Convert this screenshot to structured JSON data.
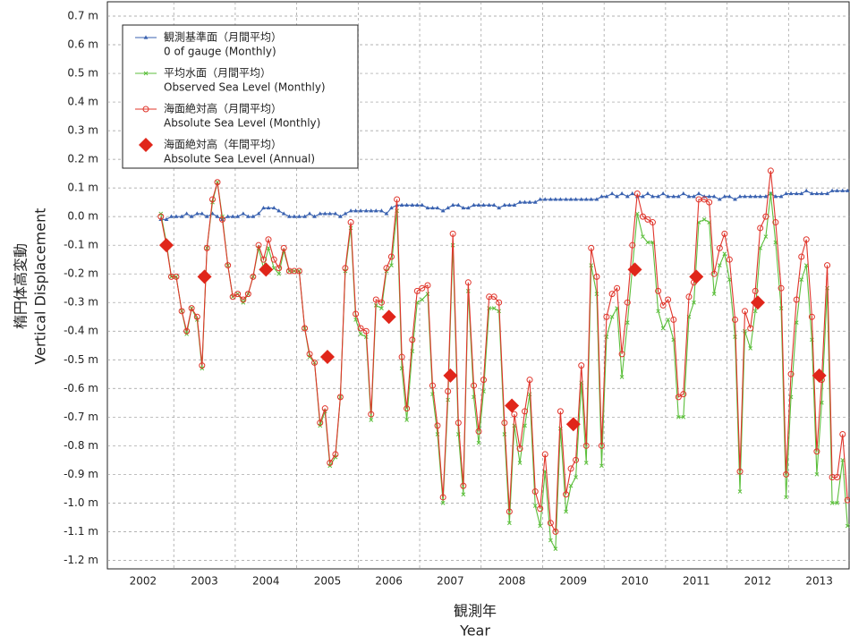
{
  "chart_data": {
    "type": "line",
    "y_label": [
      "楕円体高変動",
      "Vertical Displacement"
    ],
    "x_label": [
      "観測年",
      "Year"
    ],
    "xlim": [
      2001.92,
      2014.0
    ],
    "ylim": [
      -1.23,
      0.75
    ],
    "xticks": [
      {
        "value": 2002.5,
        "label": "2002"
      },
      {
        "value": 2003.5,
        "label": "2003"
      },
      {
        "value": 2004.5,
        "label": "2004"
      },
      {
        "value": 2005.5,
        "label": "2005"
      },
      {
        "value": 2006.5,
        "label": "2006"
      },
      {
        "value": 2007.5,
        "label": "2007"
      },
      {
        "value": 2008.5,
        "label": "2008"
      },
      {
        "value": 2009.5,
        "label": "2009"
      },
      {
        "value": 2010.5,
        "label": "2010"
      },
      {
        "value": 2011.5,
        "label": "2011"
      },
      {
        "value": 2012.5,
        "label": "2012"
      },
      {
        "value": 2013.5,
        "label": "2013"
      }
    ],
    "xgrid": [
      2003,
      2004,
      2005,
      2006,
      2007,
      2008,
      2009,
      2010,
      2011,
      2012,
      2013
    ],
    "yticks": [
      {
        "value": 0.7,
        "label": "0.7 m"
      },
      {
        "value": 0.6,
        "label": "0.6 m"
      },
      {
        "value": 0.5,
        "label": "0.5 m"
      },
      {
        "value": 0.4,
        "label": "0.4 m"
      },
      {
        "value": 0.3,
        "label": "0.3 m"
      },
      {
        "value": 0.2,
        "label": "0.2 m"
      },
      {
        "value": 0.1,
        "label": "0.1 m"
      },
      {
        "value": 0.0,
        "label": "0.0 m"
      },
      {
        "value": -0.1,
        "label": "-0.1 m"
      },
      {
        "value": -0.2,
        "label": "-0.2 m"
      },
      {
        "value": -0.3,
        "label": "-0.3 m"
      },
      {
        "value": -0.4,
        "label": "-0.4 m"
      },
      {
        "value": -0.5,
        "label": "-0.5 m"
      },
      {
        "value": -0.6,
        "label": "-0.6 m"
      },
      {
        "value": -0.7,
        "label": "-0.7 m"
      },
      {
        "value": -0.8,
        "label": "-0.8 m"
      },
      {
        "value": -0.9,
        "label": "-0.9 m"
      },
      {
        "value": -1.0,
        "label": "-1.0 m"
      },
      {
        "value": -1.1,
        "label": "-1.1 m"
      },
      {
        "value": -1.2,
        "label": "-1.2 m"
      }
    ],
    "grid": true,
    "legend": "upper left",
    "x": [
      2002.79,
      2002.88,
      2002.96,
      2003.04,
      2003.13,
      2003.21,
      2003.29,
      2003.38,
      2003.46,
      2003.54,
      2003.63,
      2003.71,
      2003.79,
      2003.88,
      2003.96,
      2004.04,
      2004.13,
      2004.21,
      2004.29,
      2004.38,
      2004.46,
      2004.54,
      2004.63,
      2004.71,
      2004.79,
      2004.88,
      2004.96,
      2005.04,
      2005.13,
      2005.21,
      2005.29,
      2005.38,
      2005.46,
      2005.54,
      2005.63,
      2005.71,
      2005.79,
      2005.88,
      2005.96,
      2006.04,
      2006.13,
      2006.21,
      2006.29,
      2006.38,
      2006.46,
      2006.54,
      2006.63,
      2006.71,
      2006.79,
      2006.88,
      2006.96,
      2007.04,
      2007.13,
      2007.21,
      2007.29,
      2007.38,
      2007.46,
      2007.54,
      2007.63,
      2007.71,
      2007.79,
      2007.88,
      2007.96,
      2008.04,
      2008.13,
      2008.21,
      2008.29,
      2008.38,
      2008.46,
      2008.54,
      2008.63,
      2008.71,
      2008.79,
      2008.88,
      2008.96,
      2009.04,
      2009.13,
      2009.21,
      2009.29,
      2009.38,
      2009.46,
      2009.54,
      2009.63,
      2009.71,
      2009.79,
      2009.88,
      2009.96,
      2010.04,
      2010.13,
      2010.21,
      2010.29,
      2010.38,
      2010.46,
      2010.54,
      2010.63,
      2010.71,
      2010.79,
      2010.88,
      2010.96,
      2011.04,
      2011.13,
      2011.21,
      2011.29,
      2011.38,
      2011.46,
      2011.54,
      2011.63,
      2011.71,
      2011.79,
      2011.88,
      2011.96,
      2012.04,
      2012.13,
      2012.21,
      2012.29,
      2012.38,
      2012.46,
      2012.54,
      2012.63,
      2012.71,
      2012.79,
      2012.88,
      2012.96,
      2013.04,
      2013.13,
      2013.21,
      2013.29,
      2013.38,
      2013.46,
      2013.54,
      2013.63,
      2013.71,
      2013.79,
      2013.88,
      2013.96
    ],
    "series": [
      {
        "name": [
          "観測基準面（月間平均）",
          "0 of gauge (Monthly)"
        ],
        "color": "#3a62b0",
        "marker": "triangle",
        "line": true,
        "values": [
          -0.01,
          -0.01,
          0.0,
          0.0,
          0.0,
          0.01,
          0.0,
          0.01,
          0.01,
          0.0,
          0.01,
          0.0,
          -0.01,
          0.0,
          0.0,
          0.0,
          0.01,
          0.0,
          0.0,
          0.01,
          0.03,
          0.03,
          0.03,
          0.02,
          0.01,
          0.0,
          0.0,
          0.0,
          0.0,
          0.01,
          0.0,
          0.01,
          0.01,
          0.01,
          0.01,
          0.0,
          0.01,
          0.02,
          0.02,
          0.02,
          0.02,
          0.02,
          0.02,
          0.02,
          0.01,
          0.03,
          0.04,
          0.04,
          0.04,
          0.04,
          0.04,
          0.04,
          0.03,
          0.03,
          0.03,
          0.02,
          0.03,
          0.04,
          0.04,
          0.03,
          0.03,
          0.04,
          0.04,
          0.04,
          0.04,
          0.04,
          0.03,
          0.04,
          0.04,
          0.04,
          0.05,
          0.05,
          0.05,
          0.05,
          0.06,
          0.06,
          0.06,
          0.06,
          0.06,
          0.06,
          0.06,
          0.06,
          0.06,
          0.06,
          0.06,
          0.06,
          0.07,
          0.07,
          0.08,
          0.07,
          0.08,
          0.07,
          0.08,
          0.07,
          0.07,
          0.08,
          0.07,
          0.07,
          0.08,
          0.07,
          0.07,
          0.07,
          0.08,
          0.07,
          0.07,
          0.08,
          0.07,
          0.07,
          0.07,
          0.06,
          0.07,
          0.07,
          0.06,
          0.07,
          0.07,
          0.07,
          0.07,
          0.07,
          0.07,
          0.08,
          0.07,
          0.07,
          0.08,
          0.08,
          0.08,
          0.08,
          0.09,
          0.08,
          0.08,
          0.08,
          0.08,
          0.09,
          0.09,
          0.09,
          0.09
        ]
      },
      {
        "name": [
          "平均水面（月間平均）",
          "Observed Sea Level (Monthly)"
        ],
        "color": "#5cbf3c",
        "marker": "cross",
        "line": true,
        "values": [
          0.01,
          -0.09,
          -0.21,
          -0.21,
          -0.33,
          -0.41,
          -0.32,
          -0.36,
          -0.53,
          -0.11,
          0.05,
          0.12,
          0.0,
          -0.17,
          -0.28,
          -0.27,
          -0.3,
          -0.27,
          -0.21,
          -0.11,
          -0.18,
          -0.11,
          -0.18,
          -0.2,
          -0.12,
          -0.19,
          -0.19,
          -0.19,
          -0.39,
          -0.49,
          -0.51,
          -0.73,
          -0.68,
          -0.87,
          -0.84,
          -0.63,
          -0.19,
          -0.04,
          -0.36,
          -0.41,
          -0.42,
          -0.71,
          -0.31,
          -0.32,
          -0.19,
          -0.17,
          0.02,
          -0.53,
          -0.71,
          -0.47,
          -0.3,
          -0.29,
          -0.27,
          -0.62,
          -0.76,
          -1.0,
          -0.64,
          -0.1,
          -0.76,
          -0.97,
          -0.26,
          -0.63,
          -0.79,
          -0.61,
          -0.32,
          -0.32,
          -0.33,
          -0.76,
          -1.07,
          -0.73,
          -0.86,
          -0.73,
          -0.62,
          -1.01,
          -1.08,
          -0.89,
          -1.13,
          -1.16,
          -0.74,
          -1.03,
          -0.94,
          -0.91,
          -0.58,
          -0.86,
          -0.17,
          -0.27,
          -0.87,
          -0.42,
          -0.35,
          -0.32,
          -0.56,
          -0.37,
          -0.18,
          0.01,
          -0.07,
          -0.09,
          -0.09,
          -0.33,
          -0.39,
          -0.36,
          -0.43,
          -0.7,
          -0.7,
          -0.35,
          -0.3,
          -0.02,
          -0.01,
          -0.02,
          -0.27,
          -0.17,
          -0.13,
          -0.22,
          -0.42,
          -0.96,
          -0.4,
          -0.46,
          -0.33,
          -0.11,
          -0.07,
          0.08,
          -0.09,
          -0.32,
          -0.98,
          -0.63,
          -0.37,
          -0.22,
          -0.17,
          -0.43,
          -0.9,
          -0.65,
          -0.25,
          -1.0,
          -1.0,
          -0.85,
          -1.08
        ]
      },
      {
        "name": [
          "海面絶対高（月間平均）",
          "Absolute Sea Level (Monthly)"
        ],
        "color": "#e0342a",
        "marker": "circle",
        "line": true,
        "values": [
          0.0,
          -0.1,
          -0.21,
          -0.21,
          -0.33,
          -0.4,
          -0.32,
          -0.35,
          -0.52,
          -0.11,
          0.06,
          0.12,
          -0.01,
          -0.17,
          -0.28,
          -0.27,
          -0.29,
          -0.27,
          -0.21,
          -0.1,
          -0.15,
          -0.08,
          -0.15,
          -0.18,
          -0.11,
          -0.19,
          -0.19,
          -0.19,
          -0.39,
          -0.48,
          -0.51,
          -0.72,
          -0.67,
          -0.86,
          -0.83,
          -0.63,
          -0.18,
          -0.02,
          -0.34,
          -0.39,
          -0.4,
          -0.69,
          -0.29,
          -0.3,
          -0.18,
          -0.14,
          0.06,
          -0.49,
          -0.67,
          -0.43,
          -0.26,
          -0.25,
          -0.24,
          -0.59,
          -0.73,
          -0.98,
          -0.61,
          -0.06,
          -0.72,
          -0.94,
          -0.23,
          -0.59,
          -0.75,
          -0.57,
          -0.28,
          -0.28,
          -0.3,
          -0.72,
          -1.03,
          -0.69,
          -0.81,
          -0.68,
          -0.57,
          -0.96,
          -1.02,
          -0.83,
          -1.07,
          -1.1,
          -0.68,
          -0.97,
          -0.88,
          -0.85,
          -0.52,
          -0.8,
          -0.11,
          -0.21,
          -0.8,
          -0.35,
          -0.27,
          -0.25,
          -0.48,
          -0.3,
          -0.1,
          0.08,
          0.0,
          -0.01,
          -0.02,
          -0.26,
          -0.31,
          -0.29,
          -0.36,
          -0.63,
          -0.62,
          -0.28,
          -0.23,
          0.06,
          0.06,
          0.05,
          -0.2,
          -0.11,
          -0.06,
          -0.15,
          -0.36,
          -0.89,
          -0.33,
          -0.39,
          -0.26,
          -0.04,
          0.0,
          0.16,
          -0.02,
          -0.25,
          -0.9,
          -0.55,
          -0.29,
          -0.14,
          -0.08,
          -0.35,
          -0.82,
          -0.57,
          -0.17,
          -0.91,
          -0.91,
          -0.76,
          -0.99
        ]
      },
      {
        "name": [
          "海面絶対高（年間平均）",
          "Absolute Sea Level (Annual)"
        ],
        "color": "#e0261a",
        "marker": "diamond",
        "line": false,
        "x": [
          2002.88,
          2003.5,
          2004.5,
          2005.5,
          2006.5,
          2007.5,
          2008.5,
          2009.5,
          2010.5,
          2011.5,
          2012.5,
          2013.5
        ],
        "values": [
          -0.1,
          -0.21,
          -0.185,
          -0.49,
          -0.35,
          -0.555,
          -0.66,
          -0.725,
          -0.185,
          -0.21,
          -0.3,
          -0.555
        ]
      }
    ]
  }
}
